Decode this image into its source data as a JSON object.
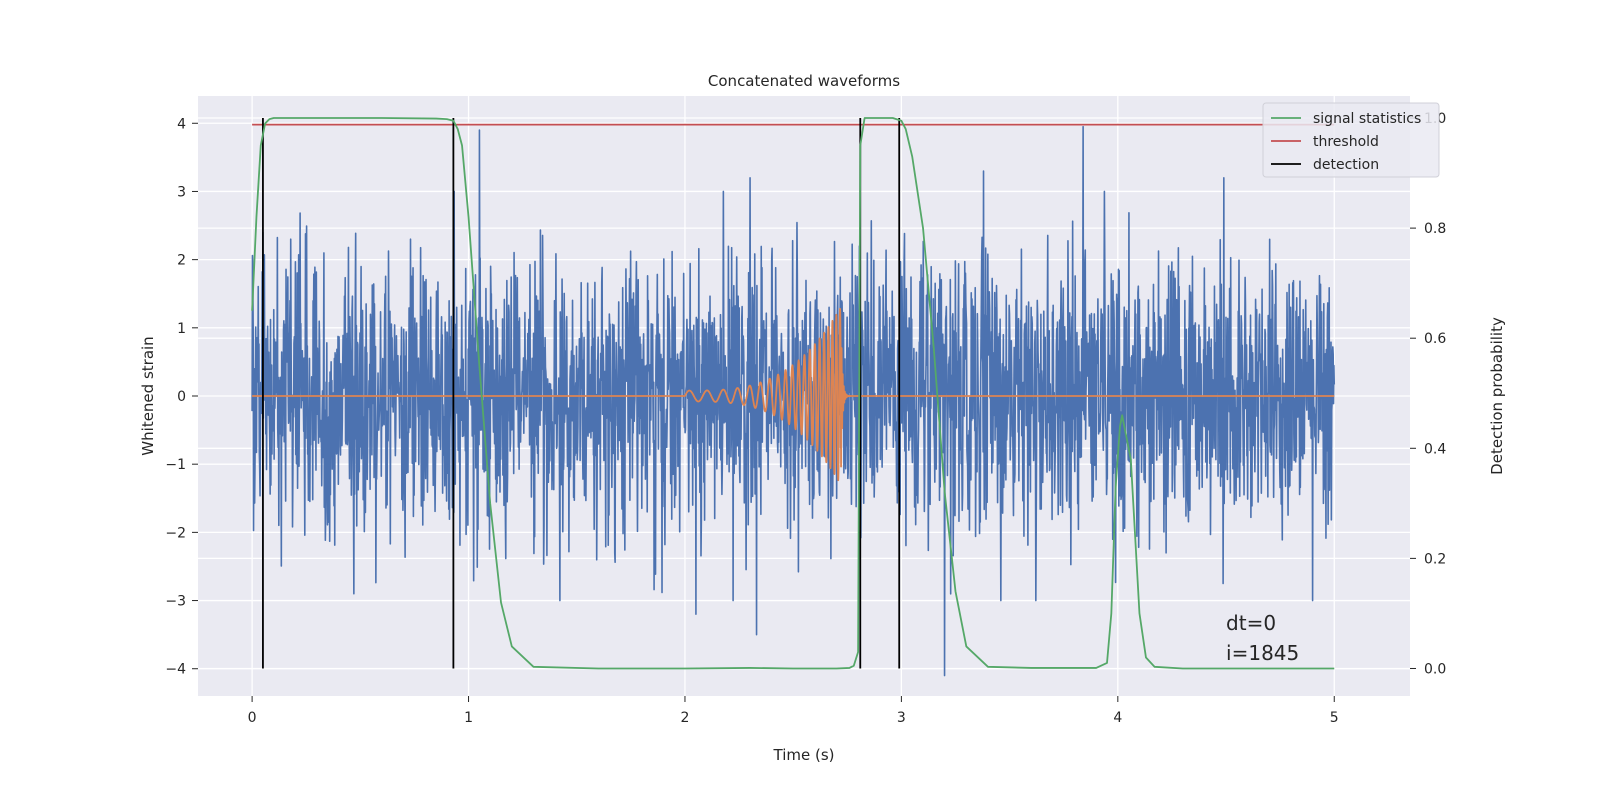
{
  "chart_data": {
    "type": "line",
    "title": "Concatenated waveforms",
    "xlabel": "Time (s)",
    "ylabel_left": "Whitened strain",
    "ylabel_right": "Detection probability",
    "xlim": [
      -0.25,
      5.35
    ],
    "ylim_left": [
      -4.4,
      4.4
    ],
    "ylim_right": [
      -0.05,
      1.04
    ],
    "x_ticks": [
      0,
      1,
      2,
      3,
      4,
      5
    ],
    "y_left_ticks": [
      -4,
      -3,
      -2,
      -1,
      0,
      1,
      2,
      3,
      4
    ],
    "y_right_ticks": [
      0.0,
      0.2,
      0.4,
      0.6,
      0.8,
      1.0
    ],
    "y_left_tick_labels": [
      "−4",
      "−3",
      "−2",
      "−1",
      "0",
      "1",
      "2",
      "3",
      "4"
    ],
    "y_right_tick_labels": [
      "0.0",
      "0.2",
      "0.4",
      "0.6",
      "0.8",
      "1.0"
    ],
    "grid": true,
    "legend_position": "top-right",
    "legend": [
      "signal statistics",
      "threshold",
      "detection"
    ],
    "annotations": [
      "dt=0",
      "i=1845"
    ],
    "colors": {
      "background": "#eaeaf2",
      "grid": "#ffffff",
      "noise": "#4c72b0",
      "injection": "#dd8452",
      "statistic": "#55a868",
      "threshold": "#c44e52",
      "detection": "#000000",
      "text": "#262626"
    },
    "series": [
      {
        "name": "",
        "axis": "left",
        "style": "noise",
        "x_range": [
          0,
          5
        ],
        "typical_amplitude": 1.0,
        "peak_values": [
          [
            0.05,
            2.4
          ],
          [
            0.47,
            -2.9
          ],
          [
            1.05,
            3.9
          ],
          [
            2.3,
            3.2
          ],
          [
            2.33,
            -3.5
          ],
          [
            2.05,
            -3.2
          ],
          [
            3.2,
            -4.1
          ],
          [
            3.38,
            3.3
          ],
          [
            3.84,
            3.95
          ],
          [
            4.49,
            3.2
          ],
          [
            4.9,
            -3.0
          ]
        ]
      },
      {
        "name": "",
        "axis": "left",
        "style": "chirp",
        "x_range": [
          0,
          5
        ],
        "chirp_start": 2.0,
        "chirp_end": 2.72,
        "start_amplitude": 0.08,
        "peak_amplitude": 1.3,
        "start_frequency_hz": 12,
        "end_frequency_hz": 60
      },
      {
        "name": "signal statistics",
        "axis": "right",
        "x": [
          0.0,
          0.02,
          0.04,
          0.06,
          0.08,
          0.1,
          0.2,
          0.6,
          0.85,
          0.9,
          0.93,
          0.95,
          0.97,
          1.0,
          1.05,
          1.1,
          1.15,
          1.2,
          1.3,
          1.6,
          2.0,
          2.3,
          2.5,
          2.7,
          2.76,
          2.78,
          2.8,
          2.81,
          2.83,
          2.9,
          2.96,
          3.0,
          3.02,
          3.05,
          3.1,
          3.15,
          3.2,
          3.25,
          3.3,
          3.4,
          3.6,
          3.9,
          3.95,
          3.97,
          3.99,
          4.01,
          4.02,
          4.03,
          4.06,
          4.08,
          4.1,
          4.13,
          4.17,
          4.3,
          4.7,
          5.0
        ],
        "y": [
          0.65,
          0.82,
          0.95,
          0.99,
          0.998,
          1.0,
          1.0,
          1.0,
          0.999,
          0.998,
          0.995,
          0.98,
          0.95,
          0.82,
          0.55,
          0.3,
          0.12,
          0.04,
          0.003,
          0.0,
          0.0,
          0.001,
          0.0,
          0.0,
          0.001,
          0.005,
          0.03,
          0.95,
          1.0,
          1.0,
          1.0,
          0.995,
          0.98,
          0.93,
          0.8,
          0.58,
          0.32,
          0.14,
          0.04,
          0.003,
          0.001,
          0.001,
          0.01,
          0.1,
          0.33,
          0.44,
          0.46,
          0.44,
          0.38,
          0.24,
          0.1,
          0.02,
          0.003,
          0.0,
          0.0,
          0.0
        ]
      },
      {
        "name": "threshold",
        "axis": "right",
        "x": [
          0,
          5
        ],
        "y": [
          0.988,
          0.988
        ]
      }
    ],
    "detections": [
      0.05,
      0.93,
      2.81,
      2.99
    ]
  }
}
